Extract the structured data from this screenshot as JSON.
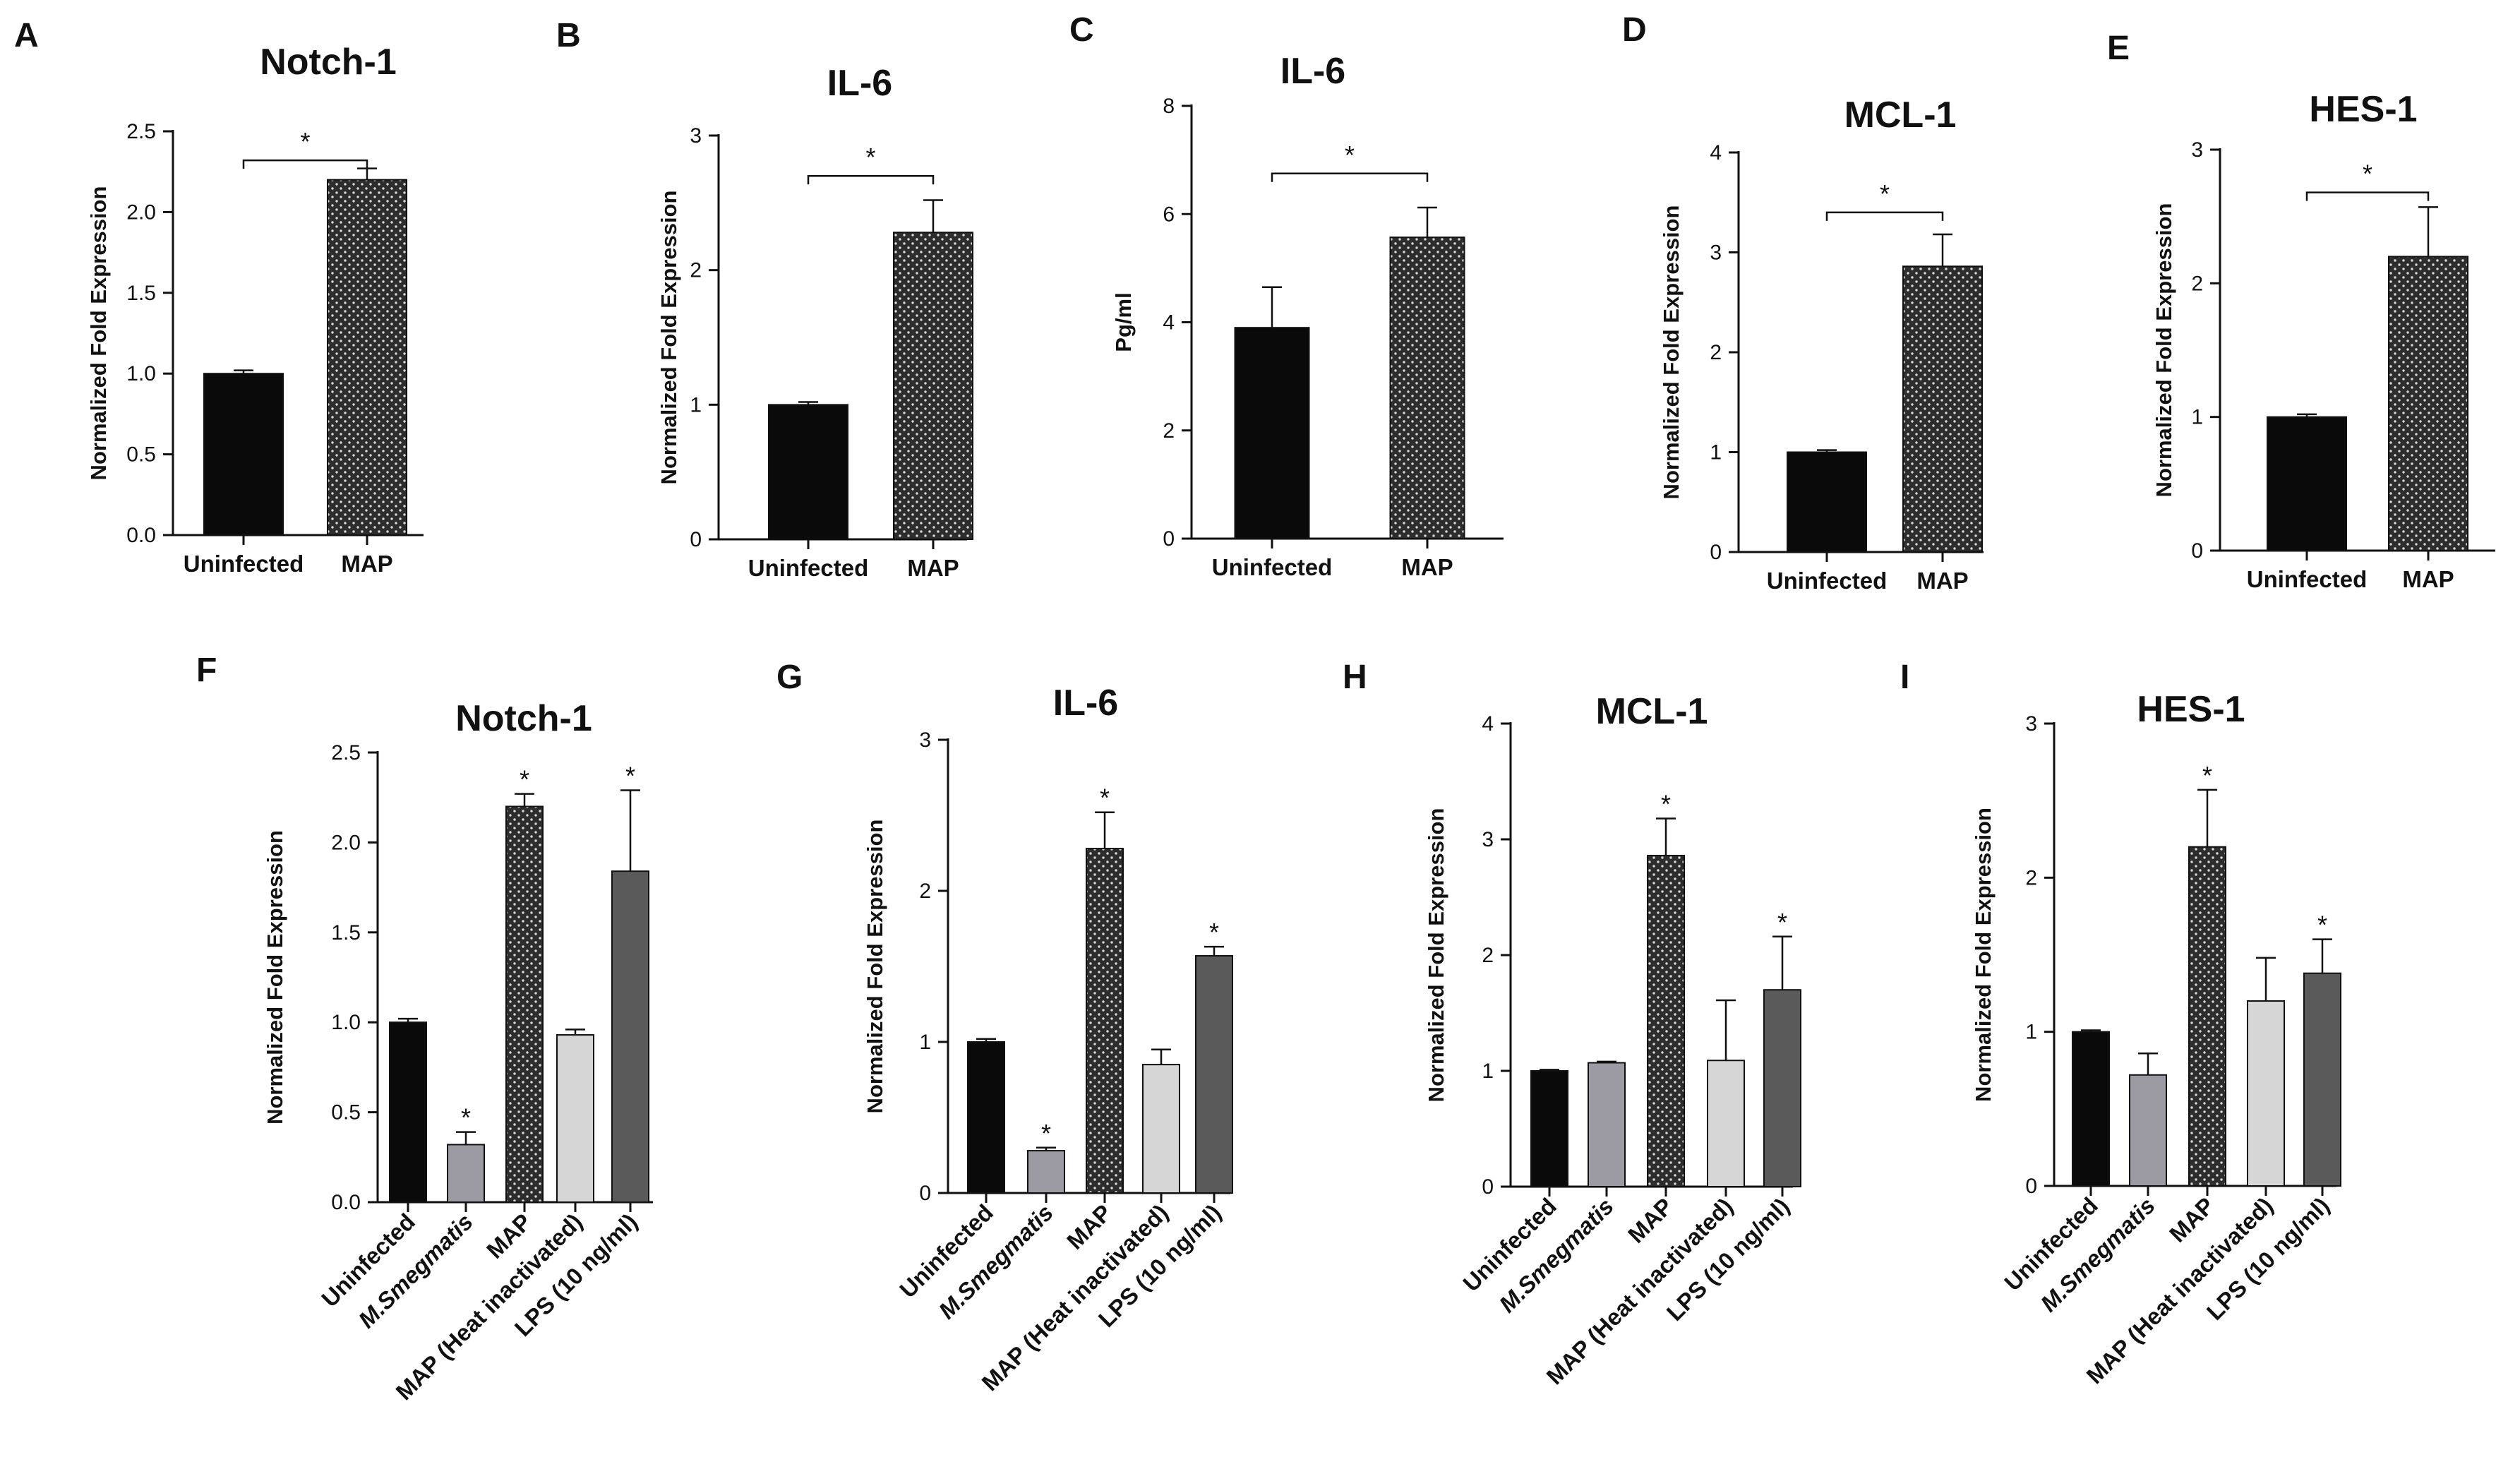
{
  "chart_data": [
    {
      "id": "A",
      "panel": "A",
      "type": "bar",
      "title": "Notch-1",
      "ylabel": "Normalized Fold Expression",
      "xlabel": "",
      "ylim": [
        0,
        2.5
      ],
      "yticks": [
        "0.0",
        "0.5",
        "1.0",
        "1.5",
        "2.0",
        "2.5"
      ],
      "categories": [
        "Uninfected",
        "MAP"
      ],
      "values": [
        1.0,
        2.2
      ],
      "errors": [
        0.02,
        0.07
      ],
      "styles": [
        "black",
        "dark-dotted"
      ],
      "bracket": {
        "from": 0,
        "to": 1,
        "y": 2.32,
        "label": "*"
      }
    },
    {
      "id": "B",
      "panel": "B",
      "type": "bar",
      "title": "IL-6",
      "ylabel": "Normalized Fold Expression",
      "xlabel": "",
      "ylim": [
        0,
        3
      ],
      "yticks": [
        "0",
        "1",
        "2",
        "3"
      ],
      "categories": [
        "Uninfected",
        "MAP"
      ],
      "values": [
        1.0,
        2.28
      ],
      "errors": [
        0.02,
        0.24
      ],
      "styles": [
        "black",
        "dark-dotted"
      ],
      "bracket": {
        "from": 0,
        "to": 1,
        "y": 2.7,
        "label": "*"
      }
    },
    {
      "id": "C",
      "panel": "C",
      "type": "bar",
      "title": "IL-6",
      "ylabel": "Pg/ml",
      "xlabel": "",
      "ylim": [
        0,
        8
      ],
      "yticks": [
        "0",
        "2",
        "4",
        "6",
        "8"
      ],
      "categories": [
        "Uninfected",
        "MAP"
      ],
      "values": [
        3.9,
        5.57
      ],
      "errors": [
        0.75,
        0.55
      ],
      "styles": [
        "black",
        "dark-dotted"
      ],
      "bracket": {
        "from": 0,
        "to": 1,
        "y": 6.75,
        "label": "*"
      }
    },
    {
      "id": "D",
      "panel": "D",
      "type": "bar",
      "title": "MCL-1",
      "ylabel": "Normalized Fold Expression",
      "xlabel": "",
      "ylim": [
        0,
        4
      ],
      "yticks": [
        "0",
        "1",
        "2",
        "3",
        "4"
      ],
      "categories": [
        "Uninfected",
        "MAP"
      ],
      "values": [
        1.0,
        2.86
      ],
      "errors": [
        0.02,
        0.32
      ],
      "styles": [
        "black",
        "dark-dotted"
      ],
      "bracket": {
        "from": 0,
        "to": 1,
        "y": 3.4,
        "label": "*"
      }
    },
    {
      "id": "E",
      "panel": "E",
      "type": "bar",
      "title": "HES-1",
      "ylabel": "Normalized Fold Expression",
      "xlabel": "",
      "ylim": [
        0,
        3
      ],
      "yticks": [
        "0",
        "1",
        "2",
        "3"
      ],
      "categories": [
        "Uninfected",
        "MAP"
      ],
      "values": [
        1.0,
        2.2
      ],
      "errors": [
        0.02,
        0.37
      ],
      "styles": [
        "black",
        "dark-dotted"
      ],
      "bracket": {
        "from": 0,
        "to": 1,
        "y": 2.68,
        "label": "*"
      }
    },
    {
      "id": "F",
      "panel": "F",
      "type": "bar",
      "title": "Notch-1",
      "ylabel": "Normalized Fold Expression",
      "xlabel": "",
      "ylim": [
        0,
        2.5
      ],
      "yticks": [
        "0.0",
        "0.5",
        "1.0",
        "1.5",
        "2.0",
        "2.5"
      ],
      "categories": [
        "Uninfected",
        "M.Smegmatis",
        "MAP",
        "MAP (Heat inactivated)",
        "LPS (10 ng/ml)"
      ],
      "values": [
        1.0,
        0.32,
        2.2,
        0.93,
        1.84
      ],
      "errors": [
        0.02,
        0.07,
        0.07,
        0.03,
        0.45
      ],
      "significance": [
        "",
        "*",
        "*",
        "",
        "*"
      ],
      "styles": [
        "black",
        "gray",
        "dark-dotted",
        "light",
        "mid"
      ]
    },
    {
      "id": "G",
      "panel": "G",
      "type": "bar",
      "title": "IL-6",
      "ylabel": "Normalized Fold Expression",
      "xlabel": "",
      "ylim": [
        0,
        3
      ],
      "yticks": [
        "0",
        "1",
        "2",
        "3"
      ],
      "categories": [
        "Uninfected",
        "M.Smegmatis",
        "MAP",
        "MAP (Heat inactivated)",
        "LPS (10 ng/ml)"
      ],
      "values": [
        1.0,
        0.28,
        2.28,
        0.85,
        1.57
      ],
      "errors": [
        0.02,
        0.02,
        0.24,
        0.1,
        0.06
      ],
      "significance": [
        "",
        "*",
        "*",
        "",
        "*"
      ],
      "styles": [
        "black",
        "gray",
        "dark-dotted",
        "light",
        "mid"
      ]
    },
    {
      "id": "H",
      "panel": "H",
      "type": "bar",
      "title": "MCL-1",
      "ylabel": "Normalized Fold Expression",
      "xlabel": "",
      "ylim": [
        0,
        4
      ],
      "yticks": [
        "0",
        "1",
        "2",
        "3",
        "4"
      ],
      "categories": [
        "Uninfected",
        "M.Smegmatis",
        "MAP",
        "MAP (Heat inactivated)",
        "LPS (10 ng/ml)"
      ],
      "values": [
        1.0,
        1.07,
        2.86,
        1.09,
        1.7
      ],
      "errors": [
        0.01,
        0.01,
        0.32,
        0.52,
        0.46
      ],
      "significance": [
        "",
        "",
        "*",
        "",
        "*"
      ],
      "styles": [
        "black",
        "gray",
        "dark-dotted",
        "light",
        "mid"
      ]
    },
    {
      "id": "I",
      "panel": "I",
      "type": "bar",
      "title": "HES-1",
      "ylabel": "Normalized Fold Expression",
      "xlabel": "",
      "ylim": [
        0,
        3
      ],
      "yticks": [
        "0",
        "1",
        "2",
        "3"
      ],
      "categories": [
        "Uninfected",
        "M.Smegmatis",
        "MAP",
        "MAP (Heat inactivated)",
        "LPS (10 ng/ml)"
      ],
      "values": [
        1.0,
        0.72,
        2.2,
        1.2,
        1.38
      ],
      "errors": [
        0.01,
        0.14,
        0.37,
        0.28,
        0.22
      ],
      "significance": [
        "",
        "",
        "*",
        "",
        "*"
      ],
      "styles": [
        "black",
        "gray",
        "dark-dotted",
        "light",
        "mid"
      ]
    }
  ],
  "colors": {
    "black": "#0a0a0a",
    "gray": "#9c9ba4",
    "dark-dotted": "#2d2d2d",
    "light": "#d6d6d6",
    "mid": "#5a5a5a",
    "dots": "#d9d9d9"
  }
}
